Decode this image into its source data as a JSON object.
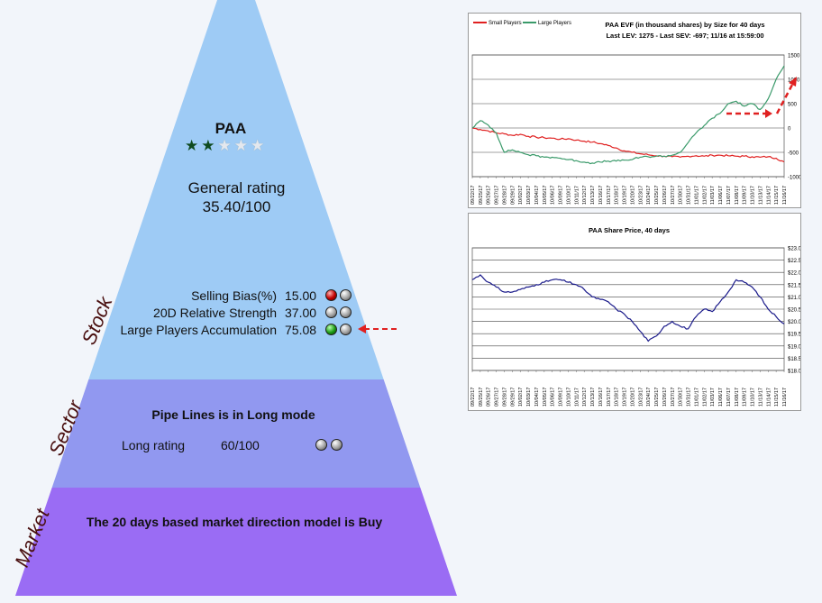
{
  "stock": {
    "ticker": "PAA",
    "stars_total": 5,
    "stars_filled": 2,
    "general_label": "General rating",
    "general_value": "35.40/100",
    "metrics": [
      {
        "label": "Selling Bias(%)",
        "value": "15.00",
        "dots": [
          "red",
          "gray"
        ]
      },
      {
        "label": "20D Relative Strength",
        "value": "37.00",
        "dots": [
          "gray",
          "gray"
        ]
      },
      {
        "label": "Large Players Accumulation",
        "value": "75.08",
        "dots": [
          "green",
          "gray"
        ]
      }
    ]
  },
  "layers": {
    "stock": "Stock",
    "sector": "Sector",
    "market": "Market"
  },
  "sector": {
    "title": "Pipe Lines is in Long mode",
    "long_label": "Long rating",
    "long_value": "60/100",
    "dots": [
      "gray",
      "gray"
    ]
  },
  "market": {
    "text": "The 20 days based market direction model is Buy"
  },
  "colors": {
    "stock_layer": "#9ecbf5",
    "sector_layer": "#9198f0",
    "market_layer": "#9a6cf4",
    "small_players": "#e02020",
    "large_players": "#3a9a6a",
    "price_line": "#1a1a8a",
    "annotation_arrow": "#e02020"
  },
  "chart_data": [
    {
      "type": "line",
      "title": "PAA EVF (in thousand shares) by Size for 40 days",
      "subtitle": "Last LEV: 1275 - Last SEV: -697; 11/16 at 15:59:00",
      "legend": [
        "Small Players",
        "Large Players"
      ],
      "legend_position": "top-left",
      "yticks": [
        "1500",
        "1000",
        "500",
        "0",
        "-500",
        "-1000"
      ],
      "ylim": [
        -1000,
        1500
      ],
      "grid": true,
      "dates": [
        "09/22/17",
        "09/25/17",
        "09/26/17",
        "09/27/17",
        "09/28/17",
        "09/29/17",
        "10/02/17",
        "10/03/17",
        "10/04/17",
        "10/05/17",
        "10/06/17",
        "10/09/17",
        "10/10/17",
        "10/11/17",
        "10/12/17",
        "10/13/17",
        "10/16/17",
        "10/17/17",
        "10/18/17",
        "10/19/17",
        "10/20/17",
        "10/23/17",
        "10/24/17",
        "10/25/17",
        "10/26/17",
        "10/27/17",
        "10/30/17",
        "10/31/17",
        "11/01/17",
        "11/02/17",
        "11/03/17",
        "11/06/17",
        "11/07/17",
        "11/08/17",
        "11/09/17",
        "11/10/17",
        "11/13/17",
        "11/14/17",
        "11/15/17",
        "11/16/17"
      ],
      "series": [
        {
          "name": "Small Players",
          "values": [
            0,
            -30,
            -60,
            -100,
            -120,
            -150,
            -130,
            -170,
            -190,
            -200,
            -210,
            -230,
            -220,
            -250,
            -270,
            -290,
            -320,
            -360,
            -410,
            -470,
            -500,
            -530,
            -550,
            -570,
            -580,
            -590,
            -600,
            -580,
            -570,
            -580,
            -560,
            -560,
            -570,
            -580,
            -580,
            -590,
            -600,
            -590,
            -620,
            -697
          ]
        },
        {
          "name": "Large Players",
          "values": [
            0,
            150,
            60,
            -100,
            -500,
            -450,
            -500,
            -550,
            -570,
            -600,
            -600,
            -620,
            -650,
            -670,
            -700,
            -720,
            -700,
            -680,
            -680,
            -660,
            -650,
            -600,
            -590,
            -580,
            -580,
            -560,
            -500,
            -300,
            -100,
            50,
            200,
            300,
            500,
            550,
            450,
            500,
            380,
            600,
            1000,
            1275
          ]
        }
      ]
    },
    {
      "type": "line",
      "title": "PAA Share Price, 40 days",
      "yticks": [
        "$23.0",
        "$22.5",
        "$22.0",
        "$21.5",
        "$21.0",
        "$20.5",
        "$20.0",
        "$19.5",
        "$19.0",
        "$18.5",
        "$18.0"
      ],
      "ylim": [
        18.0,
        23.0
      ],
      "grid": true,
      "dates": [
        "09/22/17",
        "09/25/17",
        "09/26/17",
        "09/27/17",
        "09/28/17",
        "09/29/17",
        "10/02/17",
        "10/03/17",
        "10/04/17",
        "10/05/17",
        "10/06/17",
        "10/09/17",
        "10/10/17",
        "10/11/17",
        "10/12/17",
        "10/13/17",
        "10/16/17",
        "10/17/17",
        "10/18/17",
        "10/19/17",
        "10/20/17",
        "10/23/17",
        "10/24/17",
        "10/25/17",
        "10/26/17",
        "10/27/17",
        "10/30/17",
        "10/31/17",
        "11/01/17",
        "11/02/17",
        "11/03/17",
        "11/06/17",
        "11/07/17",
        "11/08/17",
        "11/09/17",
        "11/10/17",
        "11/13/17",
        "11/14/17",
        "11/15/17",
        "11/16/17"
      ],
      "series": [
        {
          "name": "",
          "values": [
            21.7,
            21.9,
            21.6,
            21.4,
            21.2,
            21.2,
            21.3,
            21.4,
            21.5,
            21.6,
            21.7,
            21.7,
            21.6,
            21.5,
            21.3,
            21.0,
            20.9,
            20.8,
            20.5,
            20.3,
            20.0,
            19.6,
            19.2,
            19.4,
            19.8,
            20.0,
            19.8,
            19.7,
            20.2,
            20.5,
            20.4,
            20.8,
            21.2,
            21.7,
            21.6,
            21.4,
            21.0,
            20.5,
            20.2,
            19.9
          ]
        }
      ]
    }
  ]
}
